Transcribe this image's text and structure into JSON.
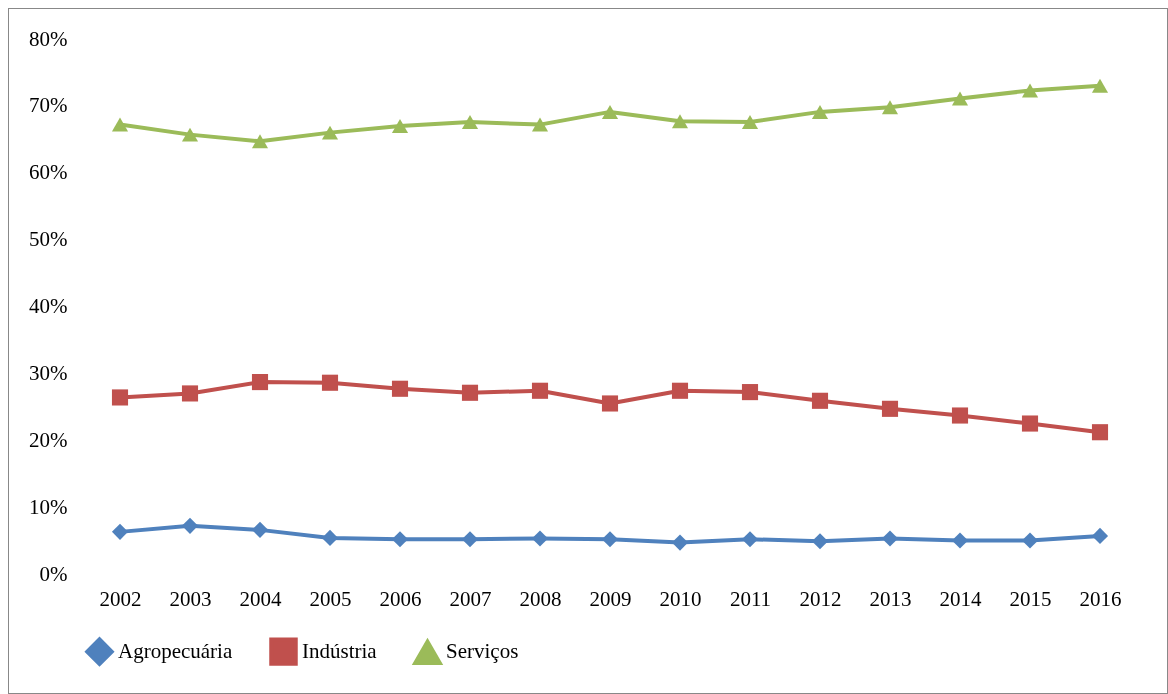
{
  "chart_data": {
    "type": "line",
    "categories": [
      "2002",
      "2003",
      "2004",
      "2005",
      "2006",
      "2007",
      "2008",
      "2009",
      "2010",
      "2011",
      "2012",
      "2013",
      "2014",
      "2015",
      "2016"
    ],
    "series": [
      {
        "name": "Agropecuária",
        "color": "#4f81bd",
        "marker": "diamond",
        "values": [
          6.3,
          7.2,
          6.6,
          5.4,
          5.2,
          5.2,
          5.3,
          5.2,
          4.7,
          5.2,
          4.9,
          5.3,
          5.0,
          5.0,
          5.7
        ]
      },
      {
        "name": "Indústria",
        "color": "#c0504d",
        "marker": "square",
        "values": [
          26.4,
          27.0,
          28.7,
          28.6,
          27.7,
          27.1,
          27.4,
          25.5,
          27.4,
          27.2,
          25.9,
          24.7,
          23.7,
          22.5,
          21.2
        ]
      },
      {
        "name": "Serviços",
        "color": "#9bbb59",
        "marker": "triangle",
        "values": [
          67.2,
          65.7,
          64.7,
          66.0,
          67.0,
          67.6,
          67.2,
          69.1,
          67.7,
          67.6,
          69.1,
          69.8,
          71.1,
          72.3,
          73.0
        ]
      }
    ],
    "ylim": [
      0,
      80
    ],
    "yticks": [
      {
        "value": 0,
        "label": "0%"
      },
      {
        "value": 10,
        "label": "10%"
      },
      {
        "value": 20,
        "label": "20%"
      },
      {
        "value": 30,
        "label": "30%"
      },
      {
        "value": 40,
        "label": "40%"
      },
      {
        "value": 50,
        "label": "50%"
      },
      {
        "value": 60,
        "label": "60%"
      },
      {
        "value": 70,
        "label": "70%"
      },
      {
        "value": 80,
        "label": "80%"
      }
    ],
    "grid": false,
    "legend": "bottom",
    "line_style": "solid"
  }
}
